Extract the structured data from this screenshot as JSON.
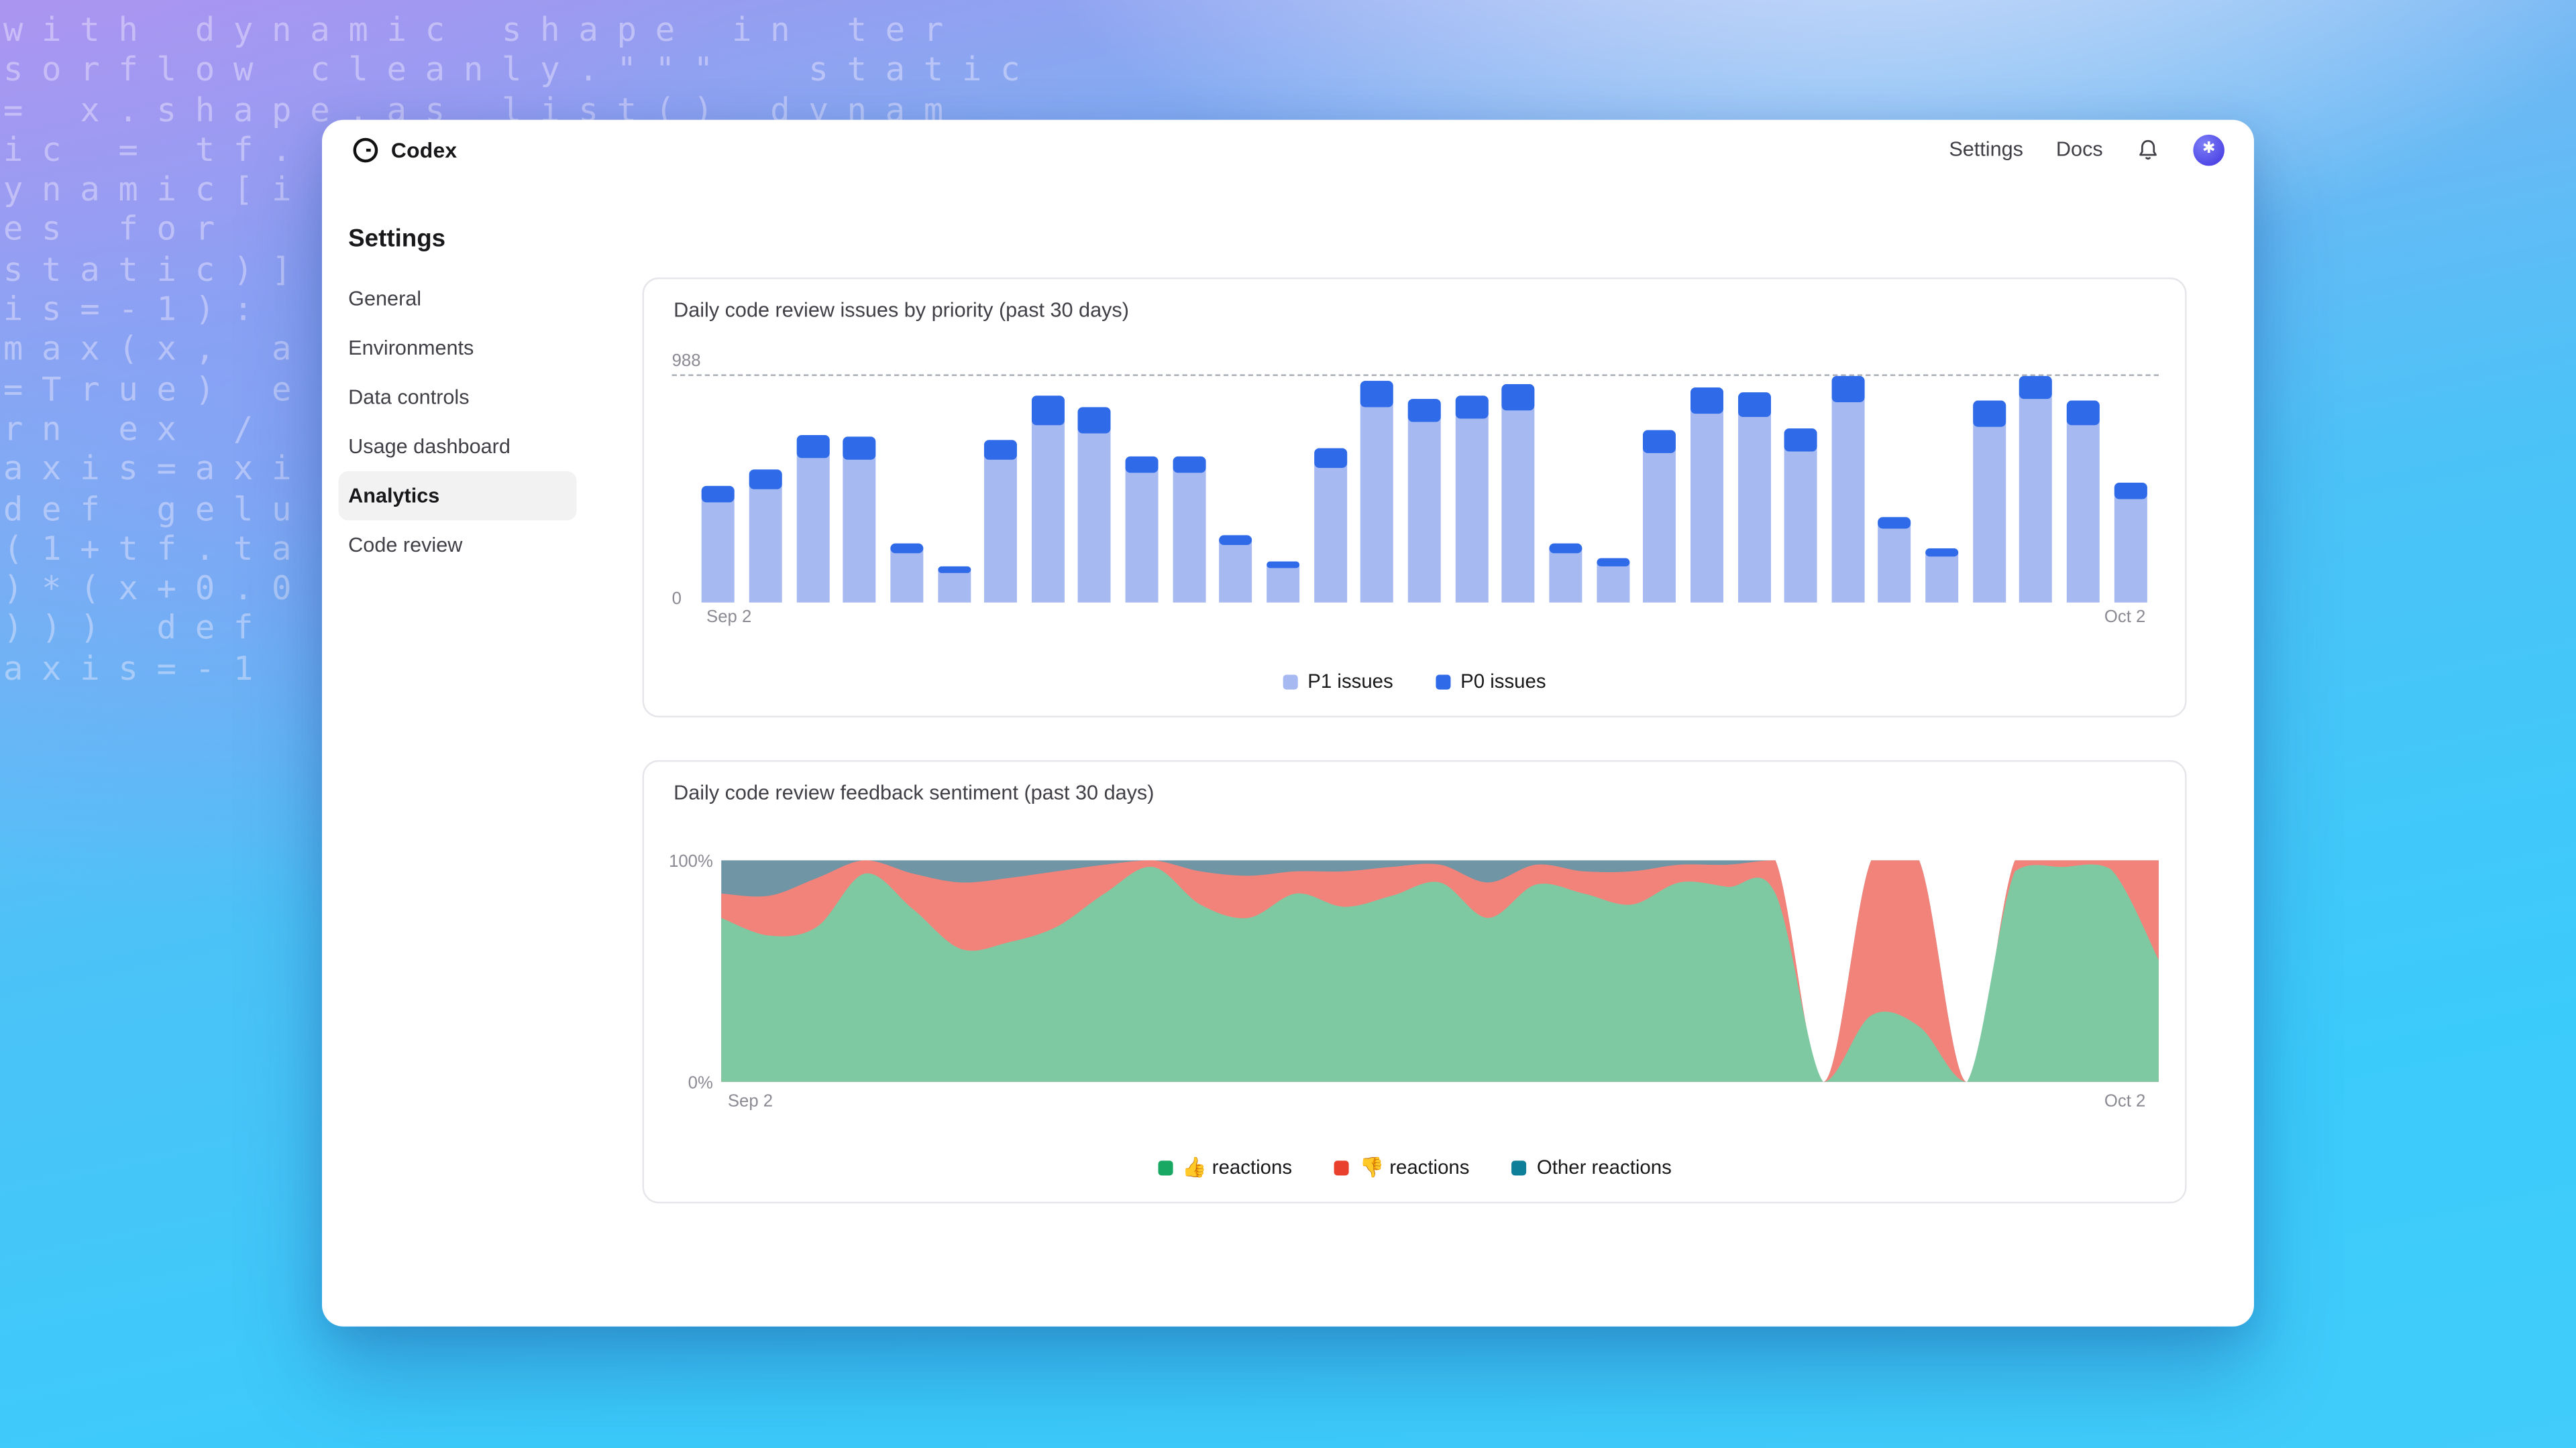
{
  "app": {
    "name": "Codex"
  },
  "nav": {
    "settings_label": "Settings",
    "docs_label": "Docs"
  },
  "page": {
    "title": "Settings"
  },
  "sidebar": {
    "items": [
      {
        "label": "General",
        "active": false
      },
      {
        "label": "Environments",
        "active": false
      },
      {
        "label": "Data controls",
        "active": false
      },
      {
        "label": "Usage dashboard",
        "active": false
      },
      {
        "label": "Analytics",
        "active": true
      },
      {
        "label": "Code review",
        "active": false
      }
    ]
  },
  "background_code_lines": [
    "with dynamic shape in ter",
    "sorflow cleanly.\"\"\"  static",
    "= x.shape.as list() dynam",
    "ic = tf.",
    "ynamic[i",
    "es for",
    "static)]",
    "is=-1):",
    "max(x, a",
    "=True) e",
    "rn ex /",
    "axis=axi",
    "def gelu",
    "(1+tf.ta",
    ")*(x+0.0",
    "))) def",
    "axis=-1"
  ],
  "chart_data": [
    {
      "type": "bar",
      "title": "Daily code review issues by priority (past 30 days)",
      "stacked": true,
      "x_start_label": "Sep 2",
      "x_end_label": "Oct 2",
      "y_max_label": "988",
      "y_min_label": "0",
      "ylim": [
        0,
        988
      ],
      "grid": "dashed-top-only",
      "legend_position": "bottom-center",
      "series": [
        {
          "name": "P1 issues",
          "color": "#a6b9f1",
          "values": [
            435,
            490,
            625,
            620,
            215,
            128,
            620,
            765,
            730,
            560,
            560,
            248,
            150,
            585,
            845,
            780,
            795,
            830,
            213,
            157,
            645,
            815,
            805,
            653,
            865,
            320,
            200,
            760,
            880,
            770,
            450
          ]
        },
        {
          "name": "P0 issues",
          "color": "#2f6be8",
          "values": [
            70,
            85,
            100,
            100,
            40,
            28,
            85,
            130,
            115,
            70,
            70,
            42,
            28,
            85,
            115,
            100,
            100,
            115,
            42,
            35,
            100,
            115,
            105,
            100,
            115,
            50,
            35,
            115,
            100,
            105,
            70
          ]
        }
      ]
    },
    {
      "type": "area",
      "title": "Daily code review feedback sentiment (past 30 days)",
      "stacked": true,
      "x_start_label": "Sep 2",
      "x_end_label": "Oct 2",
      "y_max_label": "100%",
      "y_min_label": "0%",
      "ylim": [
        0,
        100
      ],
      "grid": "off",
      "legend_position": "bottom-center",
      "series": [
        {
          "name": "👍 reactions",
          "color": "#7fc9a2",
          "legend_color": "#18a864",
          "values": [
            74,
            66,
            70,
            94,
            78,
            60,
            63,
            70,
            85,
            97,
            80,
            74,
            85,
            79,
            84,
            90,
            74,
            89,
            85,
            80,
            90,
            88,
            85,
            0,
            30,
            25,
            0,
            95,
            97,
            96,
            55
          ]
        },
        {
          "name": "👎 reactions",
          "color": "#f2837a",
          "legend_color": "#e8402c",
          "values": [
            11,
            18,
            22,
            6,
            16,
            30,
            29,
            25,
            13,
            3,
            15,
            19,
            10,
            16,
            13,
            8,
            16,
            9,
            10,
            15,
            8,
            10,
            15,
            0,
            70,
            75,
            0,
            5,
            3,
            4,
            45
          ]
        },
        {
          "name": "Other reactions",
          "color": "#7095a5",
          "legend_color": "#0d7f98",
          "values": [
            15,
            16,
            8,
            0,
            6,
            10,
            8,
            5,
            2,
            0,
            5,
            7,
            5,
            5,
            3,
            2,
            10,
            2,
            5,
            5,
            2,
            2,
            0,
            0,
            0,
            0,
            0,
            0,
            0,
            0,
            0
          ]
        }
      ]
    }
  ]
}
